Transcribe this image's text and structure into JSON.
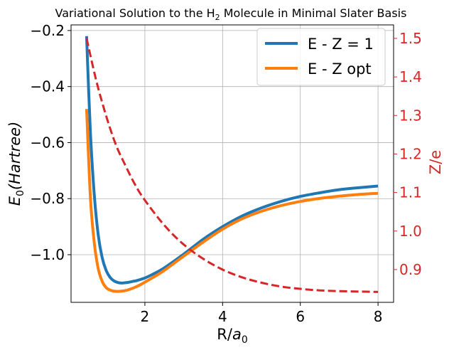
{
  "chart_data": {
    "type": "line",
    "title": "Variational Solution to the H",
    "title_sub": "2",
    "title_rest": " Molecule in Minimal Slater Basis",
    "xlabel_main": "R/",
    "xlabel_italic": "a",
    "xlabel_sub": "0",
    "ylabel_main": "E",
    "ylabel_sub": "0",
    "ylabel_italic": "(Hartree)",
    "y2label": "Z/e",
    "xlim": [
      0.1,
      8.4
    ],
    "ylim": [
      -1.17,
      -0.18
    ],
    "y2lim": [
      0.815,
      1.535
    ],
    "xticks": [
      2,
      4,
      6,
      8
    ],
    "xtick_labels": [
      "2",
      "4",
      "6",
      "8"
    ],
    "yticks": [
      -1.0,
      -0.8,
      -0.6,
      -0.4,
      -0.2
    ],
    "ytick_labels": [
      "−1.0",
      "−0.8",
      "−0.6",
      "−0.4",
      "−0.2"
    ],
    "y2ticks": [
      0.9,
      1.0,
      1.1,
      1.2,
      1.3,
      1.4,
      1.5
    ],
    "y2tick_labels": [
      "0.9",
      "1.0",
      "1.1",
      "1.2",
      "1.3",
      "1.4",
      "1.5"
    ],
    "grid": true,
    "legend_position": "top-right",
    "series": [
      {
        "name": "E - Z = 1",
        "axis": "left",
        "color": "#1f77b4",
        "style": "solid",
        "x": [
          0.5,
          0.6,
          0.7,
          0.8,
          0.9,
          1.0,
          1.1,
          1.2,
          1.3,
          1.4,
          1.5,
          1.6,
          1.7,
          1.8,
          2.0,
          2.2,
          2.5,
          3.0,
          3.5,
          4.0,
          4.5,
          5.0,
          5.5,
          6.0,
          6.5,
          7.0,
          7.5,
          8.0
        ],
        "values": [
          -0.22,
          -0.57,
          -0.79,
          -0.93,
          -1.01,
          -1.055,
          -1.08,
          -1.093,
          -1.099,
          -1.101,
          -1.1,
          -1.098,
          -1.095,
          -1.092,
          -1.083,
          -1.07,
          -1.047,
          -0.998,
          -0.945,
          -0.9,
          -0.862,
          -0.833,
          -0.81,
          -0.792,
          -0.779,
          -0.768,
          -0.761,
          -0.755
        ]
      },
      {
        "name": "E - Z opt",
        "axis": "left",
        "color": "#ff7f0e",
        "style": "solid",
        "x": [
          0.5,
          0.6,
          0.7,
          0.8,
          0.9,
          1.0,
          1.1,
          1.2,
          1.3,
          1.4,
          1.5,
          1.6,
          1.8,
          2.0,
          2.2,
          2.5,
          3.0,
          3.5,
          4.0,
          4.5,
          5.0,
          5.5,
          6.0,
          6.5,
          7.0,
          7.5,
          8.0
        ],
        "values": [
          -0.48,
          -0.8,
          -0.96,
          -1.05,
          -1.095,
          -1.117,
          -1.126,
          -1.13,
          -1.131,
          -1.13,
          -1.128,
          -1.124,
          -1.113,
          -1.098,
          -1.082,
          -1.056,
          -1.005,
          -0.955,
          -0.909,
          -0.872,
          -0.845,
          -0.825,
          -0.81,
          -0.799,
          -0.791,
          -0.785,
          -0.781
        ]
      },
      {
        "name": "Z/e",
        "axis": "right",
        "color": "#d62728",
        "style": "dashed",
        "x": [
          0.5,
          0.75,
          1.0,
          1.25,
          1.5,
          1.75,
          2.0,
          2.5,
          3.0,
          3.5,
          4.0,
          4.5,
          5.0,
          5.5,
          6.0,
          6.5,
          7.0,
          7.5,
          8.0
        ],
        "values": [
          1.5,
          1.39,
          1.3,
          1.225,
          1.17,
          1.12,
          1.08,
          1.015,
          0.965,
          0.928,
          0.9,
          0.88,
          0.866,
          0.856,
          0.85,
          0.846,
          0.844,
          0.843,
          0.842
        ]
      }
    ],
    "legend_entries": [
      "E - Z = 1",
      "E - Z opt"
    ]
  }
}
